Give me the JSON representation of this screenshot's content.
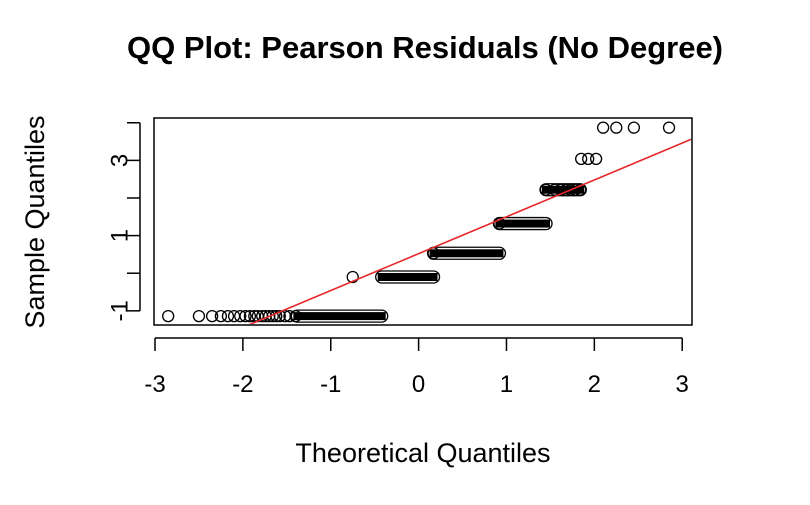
{
  "chart_data": {
    "type": "scatter",
    "title": "QQ Plot: Pearson Residuals (No Degree)",
    "xlabel": "Theoretical Quantiles",
    "ylabel": "Sample Quantiles",
    "xlim": [
      -3.0,
      3.1
    ],
    "ylim": [
      -1.35,
      4.1
    ],
    "x_ticks": [
      -3,
      -2,
      -1,
      0,
      1,
      2,
      3
    ],
    "x_tick_labels": [
      "-3",
      "-2",
      "-1",
      "0",
      "1",
      "2",
      "3"
    ],
    "y_ticks": [
      -1,
      0,
      1,
      2,
      3,
      4
    ],
    "y_tick_labels": [
      "-1",
      "",
      "1",
      "",
      "3",
      ""
    ],
    "grid": false,
    "legend": "none",
    "colors": {
      "points": "#000000",
      "reference_line": "#e8272a"
    },
    "series": [
      {
        "points": [
          [
            -2.85,
            -1.14
          ],
          [
            -2.5,
            -1.14
          ],
          [
            -2.35,
            -1.14
          ],
          [
            -2.25,
            -1.14
          ],
          [
            -2.17,
            -1.14
          ],
          [
            -2.1,
            -1.14
          ],
          [
            -2.03,
            -1.14
          ],
          [
            -1.97,
            -1.14
          ],
          [
            -1.92,
            -1.14
          ],
          [
            -1.87,
            -1.14
          ],
          [
            -1.83,
            -1.14
          ],
          [
            -1.78,
            -1.14
          ],
          [
            -1.74,
            -1.14
          ],
          [
            -1.7,
            -1.14
          ],
          [
            -1.66,
            -1.14
          ],
          [
            -1.62,
            -1.14
          ],
          [
            -1.58,
            -1.14
          ],
          [
            -1.52,
            -1.14
          ],
          [
            -1.47,
            -1.14
          ],
          [
            -1.4,
            -1.14
          ],
          [
            -0.75,
            -0.1
          ],
          [
            0.17,
            0.53
          ],
          [
            0.92,
            1.32
          ],
          [
            1.45,
            2.22
          ],
          [
            1.55,
            2.22
          ],
          [
            1.62,
            2.22
          ],
          [
            1.68,
            2.22
          ],
          [
            1.73,
            2.22
          ],
          [
            1.78,
            2.22
          ],
          [
            1.84,
            2.22
          ],
          [
            1.85,
            3.04
          ],
          [
            1.93,
            3.04
          ],
          [
            2.02,
            3.04
          ],
          [
            2.1,
            3.87
          ],
          [
            2.25,
            3.87
          ],
          [
            2.45,
            3.87
          ],
          [
            2.85,
            3.87
          ]
        ],
        "bands": [
          {
            "y": -1.14,
            "x_from": -1.38,
            "x_to": -0.42
          },
          {
            "y": -0.1,
            "x_from": -0.42,
            "x_to": 0.17
          },
          {
            "y": 0.53,
            "x_from": 0.17,
            "x_to": 0.92
          },
          {
            "y": 1.32,
            "x_from": 0.92,
            "x_to": 1.45
          },
          {
            "y": 2.22,
            "x_from": 1.45,
            "x_to": 1.84
          }
        ]
      }
    ],
    "reference_line": {
      "intercept": 0.52,
      "slope": 0.98
    }
  }
}
